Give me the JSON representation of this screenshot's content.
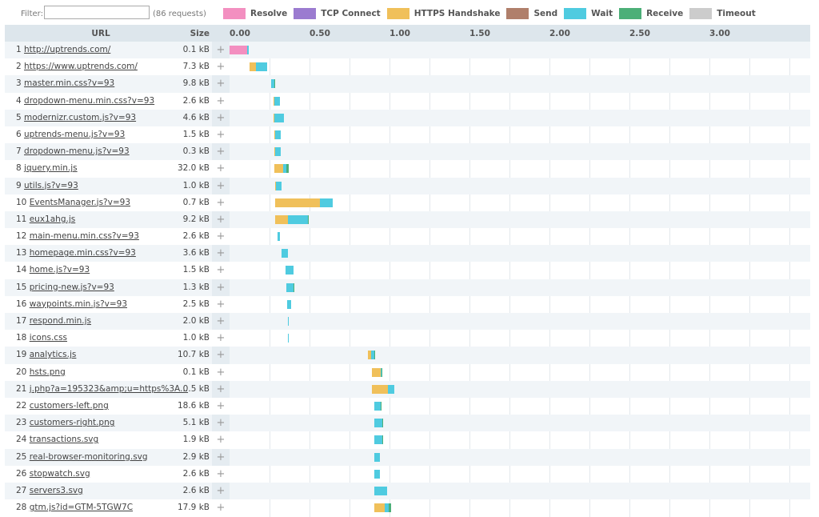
{
  "filter": {
    "label": "Filter:",
    "value": "",
    "count_text": "(86 requests)"
  },
  "legend": [
    {
      "key": "resolve",
      "label": "Resolve",
      "color": "#f38fc0"
    },
    {
      "key": "tcp",
      "label": "TCP Connect",
      "color": "#9b7bd0"
    },
    {
      "key": "https",
      "label": "HTTPS Handshake",
      "color": "#f0c05a"
    },
    {
      "key": "send",
      "label": "Send",
      "color": "#b07f6b"
    },
    {
      "key": "wait",
      "label": "Wait",
      "color": "#4fcbe0"
    },
    {
      "key": "receive",
      "label": "Receive",
      "color": "#4caf78"
    },
    {
      "key": "timeout",
      "label": "Timeout",
      "color": "#cccccc"
    }
  ],
  "header": {
    "url": "URL",
    "size": "Size"
  },
  "chart_data": {
    "type": "waterfall",
    "x_unit": "seconds",
    "xlim": [
      0,
      3.63
    ],
    "ticks": [
      "0.00",
      "0.50",
      "1.00",
      "1.50",
      "2.00",
      "2.50",
      "3.00"
    ],
    "tick_values": [
      0,
      0.5,
      1,
      1.5,
      2,
      2.5,
      3
    ],
    "grid_step": 0.25,
    "rows": [
      {
        "n": "1",
        "url": "http://uptrends.com/",
        "size": "0.1 kB",
        "start": 0,
        "phases": {
          "resolve": 0.11,
          "wait": 0.01
        }
      },
      {
        "n": "2",
        "url": "https://www.uptrends.com/",
        "size": "7.3 kB",
        "start": 0.125,
        "phases": {
          "https": 0.04,
          "wait": 0.07
        }
      },
      {
        "n": "3",
        "url": "master.min.css?v=93",
        "size": "9.8 kB",
        "start": 0.26,
        "phases": {
          "wait": 0.02,
          "receive": 0.005
        }
      },
      {
        "n": "4",
        "url": "dropdown-menu.min.css?v=93",
        "size": "2.6 kB",
        "start": 0.275,
        "phases": {
          "https": 0.005,
          "wait": 0.035
        }
      },
      {
        "n": "5",
        "url": "modernizr.custom.js?v=93",
        "size": "4.6 kB",
        "start": 0.275,
        "phases": {
          "https": 0.005,
          "wait": 0.06
        }
      },
      {
        "n": "6",
        "url": "uptrends-menu.js?v=93",
        "size": "1.5 kB",
        "start": 0.28,
        "phases": {
          "https": 0.005,
          "wait": 0.035
        }
      },
      {
        "n": "7",
        "url": "dropdown-menu.js?v=93",
        "size": "0.3 kB",
        "start": 0.28,
        "phases": {
          "https": 0.005,
          "wait": 0.035
        }
      },
      {
        "n": "8",
        "url": "jquery.min.js",
        "size": "32.0 kB",
        "start": 0.28,
        "phases": {
          "https": 0.055,
          "wait": 0.02,
          "receive": 0.015
        }
      },
      {
        "n": "9",
        "url": "utils.js?v=93",
        "size": "1.0 kB",
        "start": 0.285,
        "phases": {
          "https": 0.005,
          "wait": 0.035
        }
      },
      {
        "n": "10",
        "url": "EventsManager.js?v=93",
        "size": "0.7 kB",
        "start": 0.285,
        "phases": {
          "https": 0.28,
          "wait": 0.08
        }
      },
      {
        "n": "11",
        "url": "eux1ahg.js",
        "size": "9.2 kB",
        "start": 0.285,
        "phases": {
          "https": 0.08,
          "wait": 0.125,
          "receive": 0.005
        }
      },
      {
        "n": "12",
        "url": "main-menu.min.css?v=93",
        "size": "2.6 kB",
        "start": 0.3,
        "phases": {
          "wait": 0.015
        }
      },
      {
        "n": "13",
        "url": "homepage.min.css?v=93",
        "size": "3.6 kB",
        "start": 0.325,
        "phases": {
          "wait": 0.04
        }
      },
      {
        "n": "14",
        "url": "home.js?v=93",
        "size": "1.5 kB",
        "start": 0.35,
        "phases": {
          "wait": 0.05
        }
      },
      {
        "n": "15",
        "url": "pricing-new.js?v=93",
        "size": "1.3 kB",
        "start": 0.355,
        "phases": {
          "wait": 0.045,
          "receive": 0.005
        }
      },
      {
        "n": "16",
        "url": "waypoints.min.js?v=93",
        "size": "2.5 kB",
        "start": 0.36,
        "phases": {
          "wait": 0.025
        }
      },
      {
        "n": "17",
        "url": "respond.min.js",
        "size": "2.0 kB",
        "start": 0.365,
        "phases": {
          "wait": 0.007
        }
      },
      {
        "n": "18",
        "url": "icons.css",
        "size": "1.0 kB",
        "start": 0.365,
        "phases": {
          "wait": 0.007
        }
      },
      {
        "n": "19",
        "url": "analytics.js",
        "size": "10.7 kB",
        "start": 0.865,
        "phases": {
          "https": 0.02,
          "wait": 0.02,
          "receive": 0.005
        }
      },
      {
        "n": "20",
        "url": "hsts.png",
        "size": "0.1 kB",
        "start": 0.89,
        "phases": {
          "https": 0.055,
          "wait": 0.005,
          "receive": 0.003
        }
      },
      {
        "n": "21",
        "url": "j.php?a=195323&amp;u=https%3A...",
        "size": "0.5 kB",
        "start": 0.89,
        "phases": {
          "https": 0.1,
          "wait": 0.04
        }
      },
      {
        "n": "22",
        "url": "customers-left.png",
        "size": "18.6 kB",
        "start": 0.905,
        "phases": {
          "wait": 0.04,
          "receive": 0.005
        }
      },
      {
        "n": "23",
        "url": "customers-right.png",
        "size": "5.1 kB",
        "start": 0.905,
        "phases": {
          "wait": 0.05,
          "receive": 0.005
        }
      },
      {
        "n": "24",
        "url": "transactions.svg",
        "size": "1.9 kB",
        "start": 0.905,
        "phases": {
          "wait": 0.05,
          "receive": 0.005
        }
      },
      {
        "n": "25",
        "url": "real-browser-monitoring.svg",
        "size": "2.9 kB",
        "start": 0.905,
        "phases": {
          "wait": 0.035
        }
      },
      {
        "n": "26",
        "url": "stopwatch.svg",
        "size": "2.6 kB",
        "start": 0.905,
        "phases": {
          "wait": 0.035
        }
      },
      {
        "n": "27",
        "url": "servers3.svg",
        "size": "2.6 kB",
        "start": 0.905,
        "phases": {
          "wait": 0.08
        }
      },
      {
        "n": "28",
        "url": "gtm.js?id=GTM-5TGW7C",
        "size": "17.9 kB",
        "start": 0.905,
        "phases": {
          "https": 0.065,
          "wait": 0.025,
          "receive": 0.015
        }
      }
    ]
  },
  "row_expand_label": "+"
}
